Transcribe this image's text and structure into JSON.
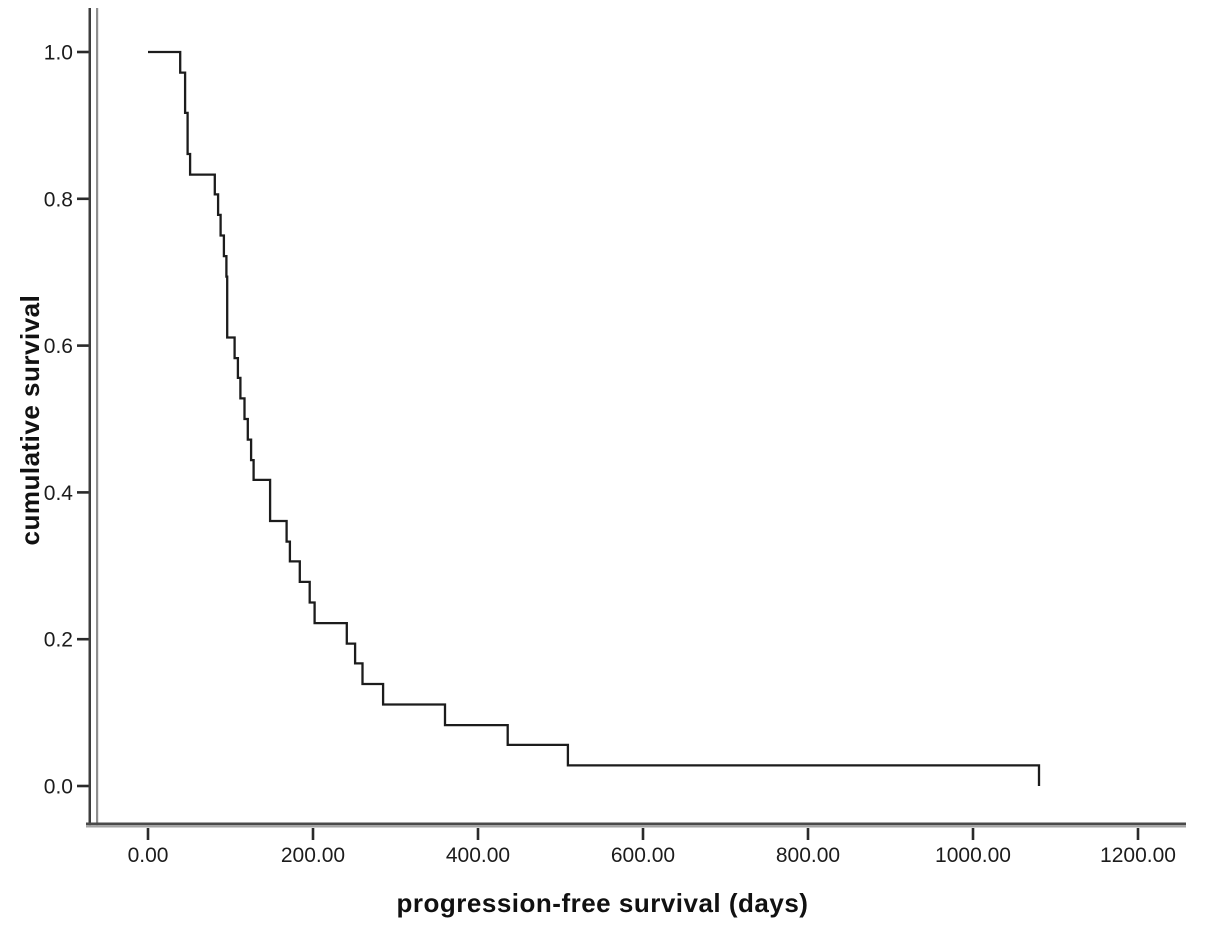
{
  "figure": {
    "background": "#ffffff",
    "curve_color": "#1c1c1c",
    "axis_line_dark": "#3d3d3d",
    "axis_line_gray": "#8f8f8f",
    "x_axis_band_top": "#4a4a4a",
    "x_axis_band_bottom": "#a3a3a3",
    "tick_color": "#2a2a2a",
    "tick_label_color": "#1c1c1c"
  },
  "chart_data": {
    "type": "line",
    "subtype": "kaplan-meier-step",
    "title": "",
    "xlabel": "progression-free survival (days)",
    "ylabel": "cumulative survival",
    "xlim": [
      0,
      1200
    ],
    "ylim": [
      0.0,
      1.0
    ],
    "grid": false,
    "legend": false,
    "x_ticks": [
      {
        "value": 0,
        "label": "0.00"
      },
      {
        "value": 200,
        "label": "200.00"
      },
      {
        "value": 400,
        "label": "400.00"
      },
      {
        "value": 600,
        "label": "600.00"
      },
      {
        "value": 800,
        "label": "800.00"
      },
      {
        "value": 1000,
        "label": "1000.00"
      },
      {
        "value": 1200,
        "label": "1200.00"
      }
    ],
    "y_ticks": [
      {
        "value": 1.0,
        "label": "1.0"
      },
      {
        "value": 0.8,
        "label": "0.8"
      },
      {
        "value": 0.6,
        "label": "0.6"
      },
      {
        "value": 0.4,
        "label": "0.4"
      },
      {
        "value": 0.2,
        "label": "0.2"
      },
      {
        "value": 0.0,
        "label": "0.0"
      }
    ],
    "series": [
      {
        "name": "cumulative survival",
        "step": "after",
        "points": [
          [
            0,
            1.0
          ],
          [
            39,
            0.972
          ],
          [
            45,
            0.917
          ],
          [
            48,
            0.861
          ],
          [
            51,
            0.833
          ],
          [
            81,
            0.806
          ],
          [
            85,
            0.778
          ],
          [
            88,
            0.75
          ],
          [
            92,
            0.722
          ],
          [
            95,
            0.694
          ],
          [
            96,
            0.611
          ],
          [
            105,
            0.583
          ],
          [
            109,
            0.556
          ],
          [
            112,
            0.528
          ],
          [
            117,
            0.5
          ],
          [
            121,
            0.472
          ],
          [
            125,
            0.444
          ],
          [
            128,
            0.417
          ],
          [
            148,
            0.361
          ],
          [
            168,
            0.333
          ],
          [
            172,
            0.306
          ],
          [
            184,
            0.278
          ],
          [
            196,
            0.25
          ],
          [
            202,
            0.222
          ],
          [
            241,
            0.194
          ],
          [
            251,
            0.167
          ],
          [
            260,
            0.139
          ],
          [
            285,
            0.111
          ],
          [
            360,
            0.083
          ],
          [
            436,
            0.056
          ],
          [
            509,
            0.028
          ],
          [
            1080,
            0.0
          ]
        ]
      }
    ]
  }
}
